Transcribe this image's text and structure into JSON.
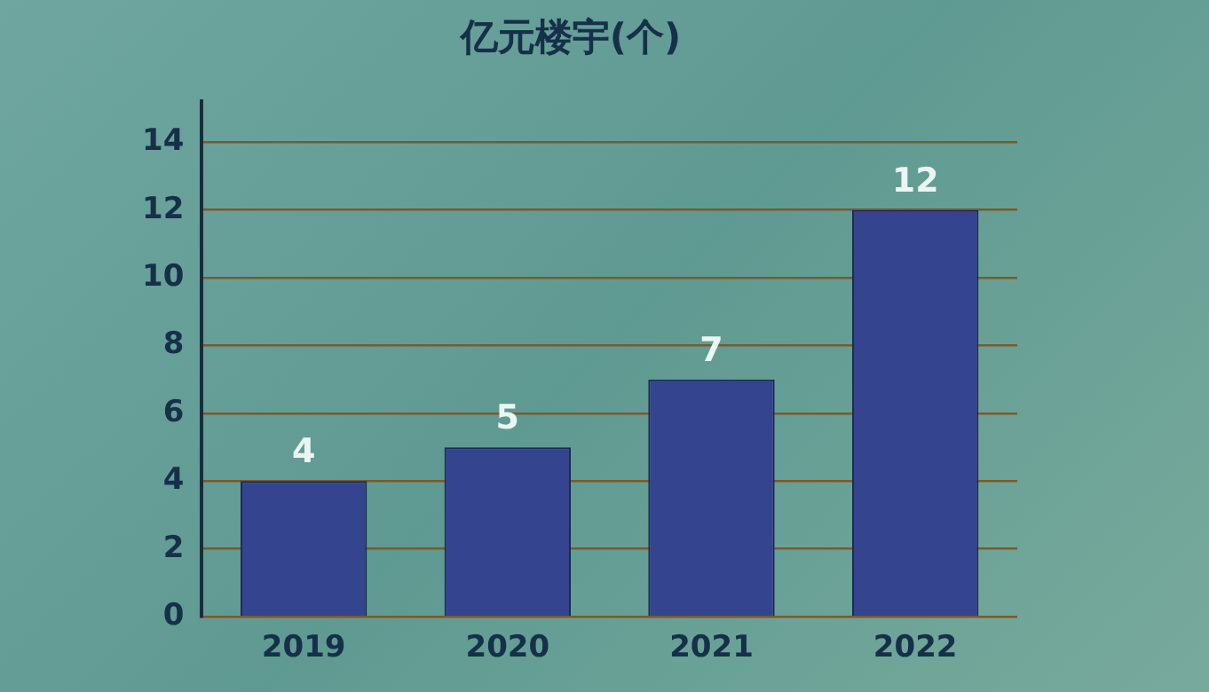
{
  "chart_data": {
    "type": "bar",
    "title": "亿元楼宇(个)",
    "categories": [
      "2019",
      "2020",
      "2021",
      "2022"
    ],
    "values": [
      4,
      5,
      7,
      12
    ],
    "color": "#34448f",
    "ylim": [
      0,
      15.2
    ],
    "yticks": [
      0,
      2,
      4,
      6,
      8,
      10,
      12,
      14
    ],
    "grid": "y",
    "data_labels": true,
    "legend": false
  }
}
